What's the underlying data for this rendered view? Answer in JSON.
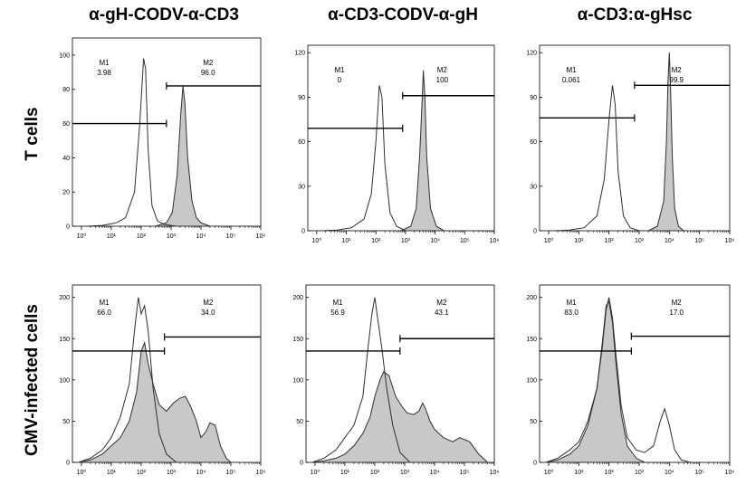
{
  "column_titles": [
    "α-gH-CODV-α-CD3",
    "α-CD3-CODV-α-gH",
    "α-CD3:α-gHsc"
  ],
  "row_titles": [
    "T cells",
    "CMV-infected cells"
  ],
  "colors": {
    "filled": "#c8c8c8",
    "line": "#303030",
    "axis": "#000000"
  },
  "chart_data": [
    {
      "type": "area",
      "row": "T cells",
      "column": "α-gH-CODV-α-CD3",
      "xscale": "log",
      "xlim": [
        0.5,
        1000000
      ],
      "ylim": [
        0,
        110
      ],
      "yticks": [
        0,
        20,
        40,
        60,
        80,
        100
      ],
      "xticks": [
        1,
        10,
        100,
        1000,
        10000,
        100000,
        1000000
      ],
      "xtick_labels": [
        "10⁰",
        "10¹",
        "10²",
        "10³",
        "10⁴",
        "10⁵",
        "10⁶"
      ],
      "gates": [
        {
          "name": "M1",
          "value": "3.98",
          "range": [
            0.5,
            700
          ],
          "y": 60
        },
        {
          "name": "M2",
          "value": "96.0",
          "range": [
            700,
            1000000
          ],
          "y": 82
        }
      ],
      "series": [
        {
          "fill": false,
          "x": [
            1.5,
            5,
            15,
            30,
            60,
            90,
            120,
            140,
            170,
            230,
            350,
            600,
            1500
          ],
          "y": [
            0,
            0.5,
            2,
            5,
            20,
            60,
            98,
            92,
            45,
            12,
            3,
            1,
            0
          ]
        },
        {
          "fill": true,
          "x": [
            300,
            700,
            1100,
            1600,
            2100,
            2500,
            2900,
            3600,
            5000,
            7000,
            10000,
            20000
          ],
          "y": [
            0,
            2,
            8,
            30,
            65,
            82,
            72,
            40,
            15,
            5,
            2,
            0
          ]
        }
      ]
    },
    {
      "type": "area",
      "row": "T cells",
      "column": "α-CD3-CODV-α-gH",
      "xscale": "log",
      "xlim": [
        0.5,
        1000000
      ],
      "ylim": [
        0,
        125
      ],
      "yticks": [
        0,
        30,
        60,
        90,
        120
      ],
      "xticks": [
        1,
        10,
        100,
        1000,
        10000,
        100000,
        1000000
      ],
      "xtick_labels": [
        "10⁰",
        "10¹",
        "10²",
        "10³",
        "10⁴",
        "10⁵",
        "10⁶"
      ],
      "gates": [
        {
          "name": "M1",
          "value": "0",
          "range": [
            0.5,
            800
          ],
          "y": 69
        },
        {
          "name": "M2",
          "value": "100",
          "range": [
            800,
            1000000
          ],
          "y": 91
        }
      ],
      "series": [
        {
          "fill": false,
          "x": [
            1.5,
            5,
            15,
            40,
            70,
            100,
            130,
            160,
            200,
            300,
            500,
            1000
          ],
          "y": [
            0,
            0.5,
            2,
            8,
            25,
            60,
            98,
            90,
            45,
            12,
            3,
            0
          ]
        },
        {
          "fill": true,
          "x": [
            700,
            1500,
            2300,
            3000,
            3600,
            4000,
            4500,
            5200,
            7000,
            11000,
            20000
          ],
          "y": [
            0,
            3,
            15,
            50,
            85,
            108,
            90,
            50,
            15,
            3,
            0
          ]
        }
      ]
    },
    {
      "type": "area",
      "row": "T cells",
      "column": "α-CD3:α-gHsc",
      "xscale": "log",
      "xlim": [
        0.5,
        1000000
      ],
      "ylim": [
        0,
        125
      ],
      "yticks": [
        0,
        30,
        60,
        90,
        120
      ],
      "xticks": [
        1,
        10,
        100,
        1000,
        10000,
        100000,
        1000000
      ],
      "xtick_labels": [
        "10⁰",
        "10¹",
        "10²",
        "10³",
        "10⁴",
        "10⁵",
        "10⁶"
      ],
      "gates": [
        {
          "name": "M1",
          "value": "0.061",
          "range": [
            0.5,
            700
          ],
          "y": 76
        },
        {
          "name": "M2",
          "value": "99.9",
          "range": [
            700,
            1000000
          ],
          "y": 98
        }
      ],
      "series": [
        {
          "fill": false,
          "x": [
            1.5,
            5,
            15,
            40,
            70,
            100,
            130,
            160,
            200,
            300,
            500,
            1000
          ],
          "y": [
            0,
            0.5,
            2,
            10,
            35,
            75,
            98,
            85,
            40,
            10,
            2,
            0
          ]
        },
        {
          "fill": true,
          "x": [
            2000,
            4000,
            6500,
            8000,
            9000,
            10000,
            11000,
            12500,
            15000,
            20000,
            30000
          ],
          "y": [
            0,
            3,
            20,
            60,
            100,
            120,
            95,
            50,
            15,
            3,
            0
          ]
        }
      ]
    },
    {
      "type": "area",
      "row": "CMV-infected cells",
      "column": "α-gH-CODV-α-CD3",
      "xscale": "log",
      "xlim": [
        0.5,
        1000000
      ],
      "ylim": [
        0,
        215
      ],
      "yticks": [
        0,
        50,
        100,
        150,
        200
      ],
      "xticks": [
        1,
        10,
        100,
        1000,
        10000,
        100000,
        1000000
      ],
      "xtick_labels": [
        "10⁰",
        "10¹",
        "10²",
        "10³",
        "10⁴",
        "10⁵",
        "10⁶"
      ],
      "gates": [
        {
          "name": "M1",
          "value": "66.0",
          "range": [
            0.5,
            600
          ],
          "y": 135
        },
        {
          "name": "M2",
          "value": "34.0",
          "range": [
            600,
            1000000
          ],
          "y": 152
        }
      ],
      "series": [
        {
          "fill": false,
          "x": [
            0.8,
            2,
            5,
            10,
            20,
            40,
            60,
            80,
            100,
            130,
            170,
            250,
            400,
            700,
            1500
          ],
          "y": [
            0,
            5,
            15,
            30,
            55,
            95,
            160,
            200,
            180,
            190,
            160,
            90,
            35,
            10,
            0
          ]
        },
        {
          "fill": true,
          "x": [
            0.8,
            2,
            5,
            10,
            20,
            40,
            70,
            100,
            130,
            170,
            250,
            400,
            700,
            1200,
            2000,
            3000,
            4500,
            7000,
            10000,
            15000,
            20000,
            30000,
            45000,
            70000,
            100000
          ],
          "y": [
            0,
            3,
            10,
            20,
            30,
            50,
            85,
            135,
            145,
            120,
            95,
            70,
            62,
            72,
            78,
            80,
            68,
            50,
            30,
            38,
            48,
            45,
            20,
            5,
            0
          ]
        }
      ]
    },
    {
      "type": "area",
      "row": "CMV-infected cells",
      "column": "α-CD3-CODV-α-gH",
      "xscale": "log",
      "xlim": [
        0.5,
        1000000
      ],
      "ylim": [
        0,
        215
      ],
      "yticks": [
        0,
        50,
        100,
        150,
        200
      ],
      "xticks": [
        1,
        10,
        100,
        1000,
        10000,
        100000,
        1000000
      ],
      "xtick_labels": [
        "10⁰",
        "10¹",
        "10²",
        "10³",
        "10⁴",
        "10⁵",
        "10⁶"
      ],
      "gates": [
        {
          "name": "M1",
          "value": "56.9",
          "range": [
            0.5,
            700
          ],
          "y": 135
        },
        {
          "name": "M2",
          "value": "43.1",
          "range": [
            700,
            1000000
          ],
          "y": 150
        }
      ],
      "series": [
        {
          "fill": false,
          "x": [
            0.8,
            2,
            5,
            10,
            20,
            40,
            60,
            80,
            100,
            130,
            170,
            250,
            400,
            700,
            1500
          ],
          "y": [
            0,
            5,
            15,
            30,
            45,
            80,
            140,
            180,
            200,
            170,
            140,
            90,
            45,
            12,
            0
          ]
        },
        {
          "fill": true,
          "x": [
            0.8,
            2,
            5,
            10,
            20,
            40,
            70,
            100,
            150,
            200,
            300,
            500,
            800,
            1200,
            2000,
            3000,
            4000,
            5000,
            7000,
            10000,
            20000,
            40000,
            70000,
            150000,
            300000,
            600000
          ],
          "y": [
            0,
            2,
            5,
            10,
            20,
            35,
            55,
            80,
            100,
            110,
            105,
            80,
            68,
            60,
            58,
            62,
            72,
            65,
            50,
            40,
            30,
            25,
            30,
            25,
            10,
            0
          ]
        }
      ]
    },
    {
      "type": "area",
      "row": "CMV-infected cells",
      "column": "α-CD3:α-gHsc",
      "xscale": "log",
      "xlim": [
        0.5,
        1000000
      ],
      "ylim": [
        0,
        215
      ],
      "yticks": [
        0,
        50,
        100,
        150,
        200
      ],
      "xticks": [
        1,
        10,
        100,
        1000,
        10000,
        100000,
        1000000
      ],
      "xtick_labels": [
        "10⁰",
        "10¹",
        "10²",
        "10³",
        "10⁴",
        "10⁵",
        "10⁶"
      ],
      "gates": [
        {
          "name": "M1",
          "value": "83.0",
          "range": [
            0.5,
            550
          ],
          "y": 135
        },
        {
          "name": "M2",
          "value": "17.0",
          "range": [
            550,
            1000000
          ],
          "y": 153
        }
      ],
      "series": [
        {
          "fill": false,
          "x": [
            0.8,
            2,
            5,
            10,
            20,
            40,
            60,
            80,
            100,
            130,
            170,
            250,
            400,
            800,
            1500,
            3000,
            5000,
            7000,
            10000,
            15000,
            25000,
            50000
          ],
          "y": [
            0,
            5,
            15,
            25,
            50,
            90,
            140,
            185,
            200,
            175,
            130,
            70,
            30,
            15,
            12,
            20,
            50,
            65,
            45,
            15,
            3,
            0
          ]
        },
        {
          "fill": true,
          "x": [
            0.8,
            2,
            5,
            10,
            20,
            40,
            60,
            80,
            100,
            130,
            170,
            250,
            400,
            800,
            1500
          ],
          "y": [
            0,
            3,
            10,
            20,
            45,
            90,
            145,
            190,
            195,
            170,
            120,
            60,
            20,
            5,
            0
          ]
        }
      ]
    }
  ]
}
